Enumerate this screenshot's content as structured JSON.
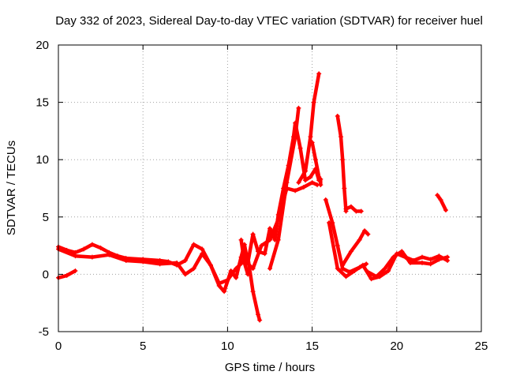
{
  "chart_data": {
    "type": "scatter",
    "title": "Day 332 of 2023, Sidereal Day-to-day VTEC variation (SDTVAR) for receiver huel",
    "xlabel": "GPS time / hours",
    "ylabel": "SDTVAR / TECUs",
    "xlim": [
      0,
      25
    ],
    "ylim": [
      -5,
      20
    ],
    "xticks": [
      0,
      5,
      10,
      15,
      20,
      25
    ],
    "yticks": [
      -5,
      0,
      5,
      10,
      15,
      20
    ],
    "grid": true,
    "marker": "+",
    "color": "#ff0000",
    "series": [
      {
        "name": "track-main-1",
        "points": [
          [
            0.0,
            2.4
          ],
          [
            0.5,
            2.1
          ],
          [
            1.0,
            1.9
          ],
          [
            1.5,
            2.2
          ],
          [
            2.0,
            2.6
          ],
          [
            2.5,
            2.3
          ],
          [
            3.0,
            1.9
          ],
          [
            3.5,
            1.6
          ],
          [
            4.0,
            1.4
          ],
          [
            5.0,
            1.3
          ],
          [
            6.0,
            1.2
          ],
          [
            6.5,
            1.1
          ],
          [
            7.0,
            0.8
          ],
          [
            7.5,
            1.2
          ],
          [
            8.0,
            2.6
          ],
          [
            8.5,
            2.2
          ],
          [
            9.0,
            0.8
          ],
          [
            9.5,
            -1.0
          ],
          [
            9.8,
            -1.5
          ],
          [
            10.2,
            0.3
          ],
          [
            10.5,
            -0.3
          ],
          [
            10.8,
            1.5
          ],
          [
            11.0,
            2.6
          ],
          [
            11.2,
            1.0
          ],
          [
            11.5,
            3.5
          ],
          [
            11.8,
            2.0
          ],
          [
            12.2,
            1.8
          ],
          [
            12.5,
            4.0
          ],
          [
            12.8,
            3.0
          ],
          [
            13.0,
            5.2
          ],
          [
            13.3,
            7.5
          ],
          [
            13.6,
            9.5
          ],
          [
            13.9,
            12.0
          ],
          [
            14.0,
            13.2
          ],
          [
            14.3,
            11.0
          ],
          [
            14.6,
            8.2
          ],
          [
            14.9,
            8.5
          ],
          [
            15.2,
            9.2
          ],
          [
            15.4,
            8.2
          ]
        ]
      },
      {
        "name": "track-main-2",
        "points": [
          [
            0.0,
            2.2
          ],
          [
            1.0,
            1.6
          ],
          [
            2.0,
            1.5
          ],
          [
            3.0,
            1.7
          ],
          [
            4.0,
            1.2
          ],
          [
            5.0,
            1.1
          ],
          [
            6.0,
            0.9
          ],
          [
            7.0,
            1.0
          ],
          [
            7.5,
            0.0
          ],
          [
            8.0,
            0.5
          ],
          [
            8.5,
            1.8
          ],
          [
            9.0,
            0.8
          ],
          [
            9.5,
            -0.8
          ],
          [
            10.0,
            -0.5
          ],
          [
            10.5,
            0.5
          ],
          [
            11.0,
            1.2
          ],
          [
            11.5,
            0.5
          ],
          [
            12.0,
            2.5
          ],
          [
            12.5,
            3.0
          ],
          [
            13.0,
            4.8
          ],
          [
            13.5,
            7.5
          ],
          [
            14.0,
            7.3
          ],
          [
            14.5,
            7.6
          ],
          [
            15.0,
            8.0
          ],
          [
            15.3,
            7.8
          ]
        ]
      },
      {
        "name": "track-early-dip",
        "points": [
          [
            0.0,
            -0.3
          ],
          [
            0.5,
            -0.1
          ],
          [
            1.0,
            0.3
          ]
        ]
      },
      {
        "name": "track-spike-a",
        "points": [
          [
            12.5,
            0.5
          ],
          [
            13.0,
            3.0
          ],
          [
            13.5,
            8.0
          ],
          [
            14.0,
            12.0
          ],
          [
            14.2,
            14.5
          ]
        ]
      },
      {
        "name": "track-spike-b",
        "points": [
          [
            14.2,
            8.0
          ],
          [
            14.6,
            9.0
          ],
          [
            14.9,
            12.0
          ],
          [
            15.1,
            15.0
          ],
          [
            15.4,
            17.5
          ]
        ]
      },
      {
        "name": "track-spike-c",
        "points": [
          [
            15.0,
            11.5
          ],
          [
            15.2,
            10.0
          ],
          [
            15.4,
            8.5
          ]
        ]
      },
      {
        "name": "track-drop-1",
        "points": [
          [
            11.2,
            1.5
          ],
          [
            11.5,
            -1.5
          ],
          [
            11.8,
            -3.5
          ],
          [
            11.9,
            -4.0
          ]
        ]
      },
      {
        "name": "track-drop-2",
        "points": [
          [
            10.8,
            3.0
          ],
          [
            11.0,
            1.0
          ],
          [
            11.2,
            0.0
          ]
        ]
      },
      {
        "name": "track-post-1",
        "points": [
          [
            15.8,
            6.5
          ],
          [
            16.2,
            4.5
          ],
          [
            16.5,
            2.5
          ],
          [
            16.8,
            0.5
          ],
          [
            17.2,
            0.2
          ],
          [
            17.8,
            0.6
          ],
          [
            18.2,
            0.9
          ]
        ]
      },
      {
        "name": "track-post-2",
        "points": [
          [
            16.0,
            4.5
          ],
          [
            16.5,
            0.5
          ],
          [
            17.0,
            -0.2
          ],
          [
            17.5,
            0.3
          ],
          [
            18.0,
            0.8
          ],
          [
            18.5,
            -0.4
          ],
          [
            19.0,
            -0.2
          ],
          [
            19.5,
            0.3
          ],
          [
            20.0,
            1.8
          ],
          [
            20.5,
            1.5
          ],
          [
            21.0,
            1.2
          ],
          [
            21.5,
            1.5
          ],
          [
            22.0,
            1.3
          ],
          [
            22.5,
            1.6
          ],
          [
            23.0,
            1.2
          ]
        ]
      },
      {
        "name": "track-post-3",
        "points": [
          [
            16.8,
            0.8
          ],
          [
            17.3,
            2.0
          ],
          [
            17.8,
            3.0
          ],
          [
            18.1,
            3.8
          ],
          [
            18.3,
            3.5
          ]
        ]
      },
      {
        "name": "track-post-4",
        "points": [
          [
            18.3,
            0.2
          ],
          [
            18.8,
            -0.2
          ],
          [
            19.3,
            0.5
          ],
          [
            19.8,
            1.5
          ],
          [
            20.3,
            2.0
          ],
          [
            20.8,
            1.0
          ],
          [
            21.5,
            1.0
          ],
          [
            22.0,
            0.9
          ],
          [
            22.5,
            1.3
          ],
          [
            23.0,
            1.5
          ]
        ]
      },
      {
        "name": "track-isolated-16",
        "points": [
          [
            16.5,
            13.8
          ],
          [
            16.7,
            12.0
          ],
          [
            16.8,
            10.0
          ],
          [
            16.9,
            7.5
          ],
          [
            17.0,
            5.5
          ]
        ]
      },
      {
        "name": "track-isolated-17",
        "points": [
          [
            17.0,
            5.7
          ],
          [
            17.3,
            5.9
          ],
          [
            17.6,
            5.5
          ],
          [
            17.9,
            5.5
          ]
        ]
      },
      {
        "name": "track-isolated-15",
        "points": [
          [
            15.5,
            7.8
          ],
          [
            15.5,
            8.3
          ]
        ]
      },
      {
        "name": "track-late-22",
        "points": [
          [
            22.4,
            6.9
          ],
          [
            22.6,
            6.5
          ],
          [
            22.9,
            5.6
          ]
        ]
      }
    ]
  }
}
